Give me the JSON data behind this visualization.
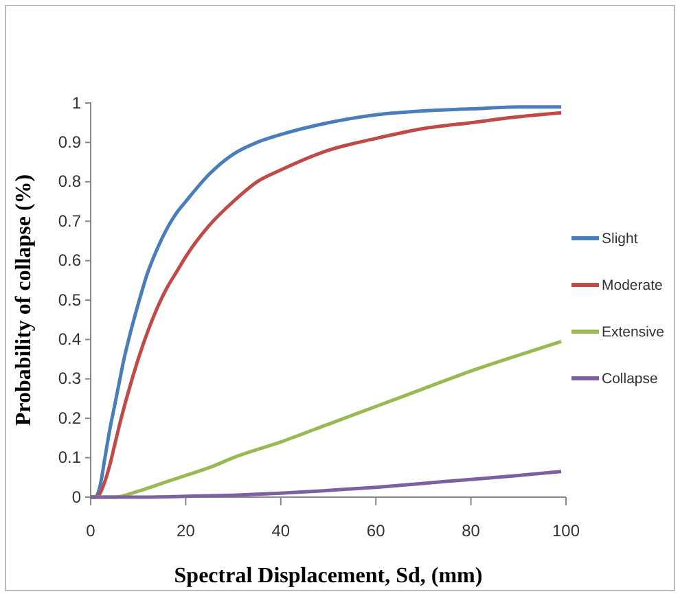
{
  "chart_data": {
    "type": "line",
    "xlabel": "Spectral Displacement, Sd, (mm)",
    "ylabel": "Probability of collapse (%)",
    "xlim": [
      0,
      100
    ],
    "xticks": [
      0,
      20,
      40,
      60,
      80,
      100
    ],
    "ylim": [
      0,
      1
    ],
    "yticks": [
      0,
      0.1,
      0.2,
      0.3,
      0.4,
      0.5,
      0.6,
      0.7,
      0.8,
      0.9,
      1
    ],
    "legend": "right",
    "grid": false,
    "marker": "none",
    "line_style": "solid",
    "series": [
      {
        "name": "Slight",
        "color": "#4a7ebb",
        "x": [
          0,
          1,
          2,
          3,
          4,
          5,
          6,
          7,
          8,
          10,
          12,
          14,
          16,
          18,
          20,
          25,
          30,
          35,
          40,
          50,
          60,
          70,
          80,
          90,
          99
        ],
        "values": [
          0,
          0,
          0.03,
          0.1,
          0.17,
          0.23,
          0.29,
          0.35,
          0.4,
          0.49,
          0.57,
          0.63,
          0.68,
          0.72,
          0.75,
          0.82,
          0.87,
          0.9,
          0.92,
          0.95,
          0.97,
          0.98,
          0.985,
          0.99,
          0.99
        ]
      },
      {
        "name": "Moderate",
        "color": "#be4b48",
        "x": [
          0,
          1,
          2,
          3,
          4,
          5,
          6,
          8,
          10,
          12,
          14,
          16,
          18,
          20,
          25,
          30,
          35,
          40,
          50,
          60,
          70,
          80,
          90,
          99
        ],
        "values": [
          0,
          0,
          0.01,
          0.04,
          0.08,
          0.13,
          0.18,
          0.27,
          0.35,
          0.42,
          0.48,
          0.53,
          0.57,
          0.61,
          0.69,
          0.75,
          0.8,
          0.83,
          0.88,
          0.91,
          0.935,
          0.95,
          0.965,
          0.975
        ]
      },
      {
        "name": "Extensive",
        "color": "#98b954",
        "x": [
          0,
          5,
          10,
          15,
          20,
          25,
          30,
          40,
          50,
          60,
          70,
          80,
          90,
          99
        ],
        "values": [
          0,
          0,
          0.015,
          0.035,
          0.055,
          0.075,
          0.1,
          0.14,
          0.185,
          0.23,
          0.275,
          0.32,
          0.36,
          0.395
        ]
      },
      {
        "name": "Collapse",
        "color": "#7d60a0",
        "x": [
          0,
          10,
          20,
          30,
          40,
          50,
          60,
          70,
          80,
          90,
          99
        ],
        "values": [
          0,
          0,
          0.002,
          0.005,
          0.01,
          0.017,
          0.025,
          0.035,
          0.045,
          0.055,
          0.065
        ]
      }
    ]
  }
}
